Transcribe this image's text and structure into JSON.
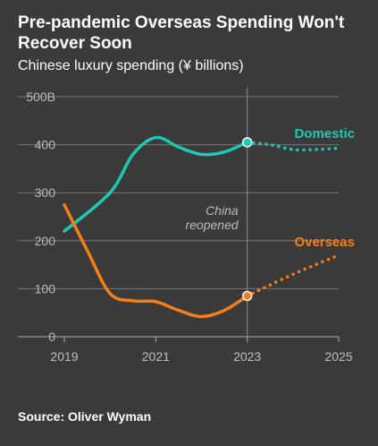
{
  "chart_data": {
    "type": "line",
    "title": "Pre-pandemic Overseas Spending Won't Recover Soon",
    "subtitle": "Chinese luxury spending (¥ billions)",
    "x_ticks": [
      "2019",
      "2021",
      "2023",
      "2025"
    ],
    "y_ticks": [
      "0",
      "100",
      "200",
      "300",
      "400",
      "500B"
    ],
    "ylim": [
      0,
      500
    ],
    "xlim": [
      2019,
      2025
    ],
    "grid": true,
    "series": [
      {
        "name": "Domestic",
        "color": "#1fc8b4",
        "points": [
          [
            2019,
            220
          ],
          [
            2020,
            300
          ],
          [
            2020.5,
            380
          ],
          [
            2021,
            415
          ],
          [
            2021.5,
            395
          ],
          [
            2022,
            380
          ],
          [
            2022.5,
            385
          ],
          [
            2023,
            405
          ]
        ],
        "projected": [
          [
            2023,
            405
          ],
          [
            2023.5,
            400
          ],
          [
            2024,
            390
          ],
          [
            2024.5,
            390
          ],
          [
            2025,
            393
          ]
        ]
      },
      {
        "name": "Overseas",
        "color": "#f57e1a",
        "points": [
          [
            2019,
            275
          ],
          [
            2019.5,
            180
          ],
          [
            2020,
            90
          ],
          [
            2020.5,
            75
          ],
          [
            2021,
            73
          ],
          [
            2021.5,
            55
          ],
          [
            2022,
            42
          ],
          [
            2022.5,
            55
          ],
          [
            2023,
            85
          ]
        ],
        "projected": [
          [
            2023,
            85
          ],
          [
            2024,
            130
          ],
          [
            2025,
            170
          ]
        ]
      }
    ],
    "annotations": [
      {
        "text": "China",
        "x": 2023,
        "y": 270
      },
      {
        "text": "reopened",
        "x": 2023,
        "y": 238
      }
    ]
  },
  "source_text": "Source: Oliver Wyman"
}
